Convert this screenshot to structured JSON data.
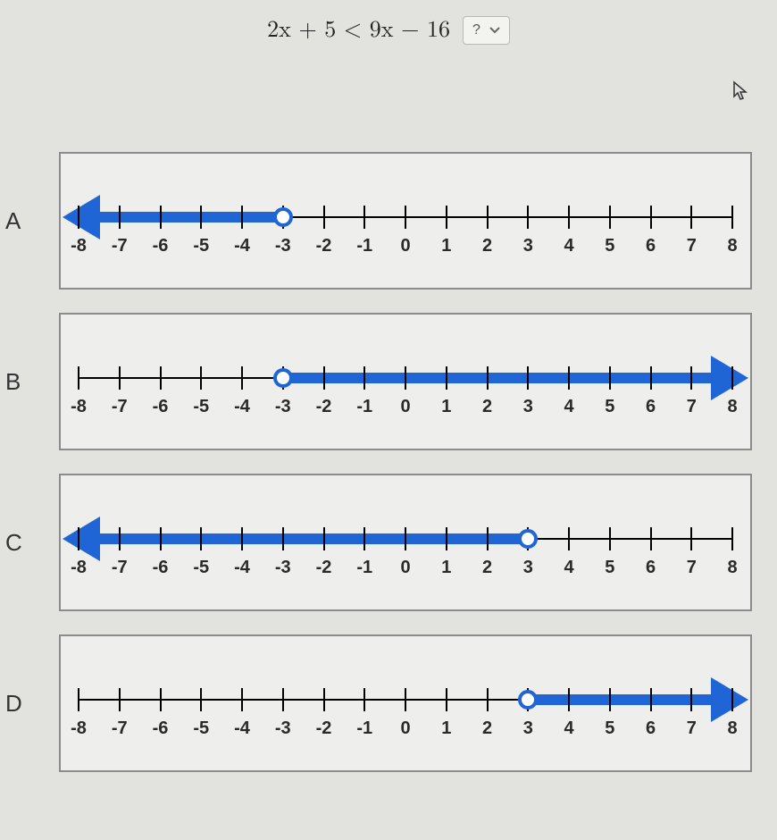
{
  "header": {
    "equation": "2x + 5 < 9x − 16",
    "dropdown_placeholder": "?"
  },
  "axis": {
    "min": -8,
    "max": 8,
    "step": 1,
    "tick_color": "#000000",
    "label_color": "#2a2a2a",
    "label_fontsize": 20
  },
  "style": {
    "line_color": "#2065d6",
    "line_width": 12,
    "arrow_size": 42,
    "circle_type": "open",
    "circle_border_color": "#2065d6",
    "circle_fill": "#ffffff",
    "panel_bg": "#eeeeec",
    "panel_border": "#8c8c8c",
    "page_bg": "#e2e2df"
  },
  "options": [
    {
      "label": "A",
      "endpoint": -3,
      "direction": "left"
    },
    {
      "label": "B",
      "endpoint": -3,
      "direction": "right"
    },
    {
      "label": "C",
      "endpoint": 3,
      "direction": "left"
    },
    {
      "label": "D",
      "endpoint": 3,
      "direction": "right"
    }
  ]
}
